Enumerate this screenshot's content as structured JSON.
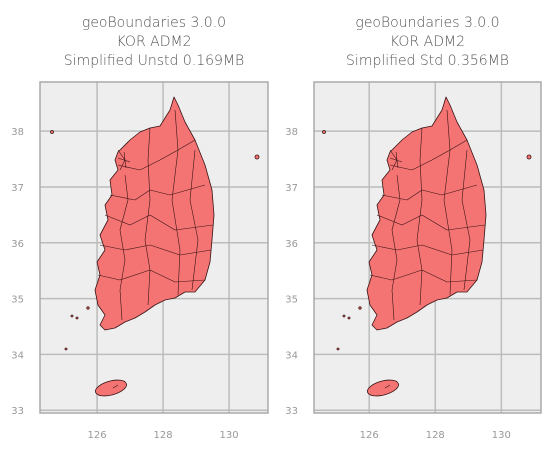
{
  "chart_data": [
    {
      "type": "map",
      "title": [
        "geoBoundaries 3.0.0",
        "KOR ADM2",
        "Simplified Unstd 0.169MB"
      ],
      "xlim": [
        124.27,
        131.18
      ],
      "ylim": [
        32.95,
        38.88
      ],
      "xticks": [
        126,
        128,
        130
      ],
      "yticks": [
        33,
        34,
        35,
        36,
        37,
        38
      ],
      "grid": true,
      "color": "#f47474"
    },
    {
      "type": "map",
      "title": [
        "geoBoundaries 3.0.0",
        "KOR ADM2",
        "Simplified Std 0.356MB"
      ],
      "xlim": [
        124.33,
        131.2
      ],
      "ylim": [
        32.95,
        38.88
      ],
      "xticks": [
        126,
        128,
        130
      ],
      "yticks": [
        33,
        34,
        35,
        36,
        37,
        38
      ],
      "grid": true,
      "color": "#f47474"
    }
  ]
}
